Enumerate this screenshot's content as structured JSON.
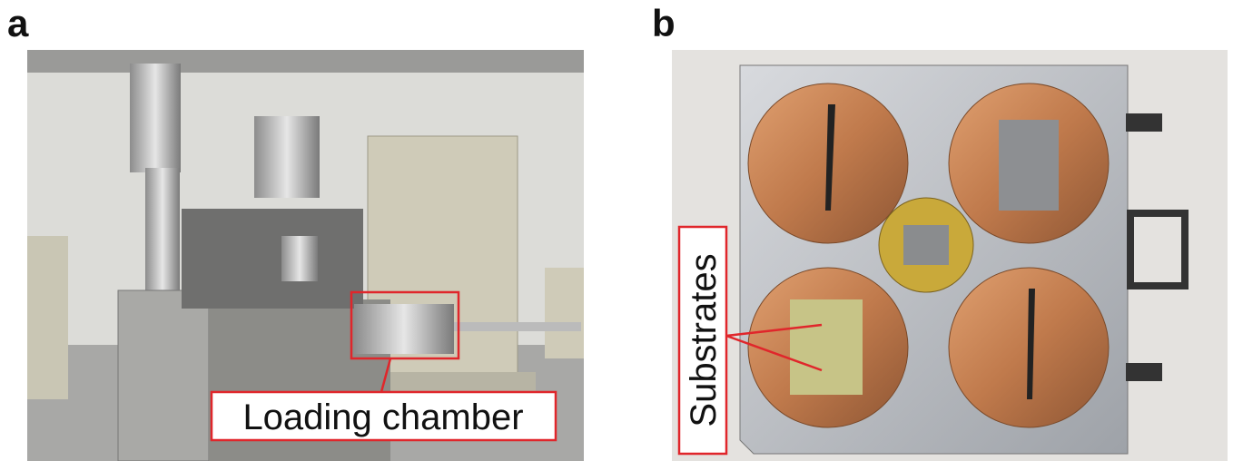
{
  "panels": [
    {
      "label": "a",
      "callout": "Loading chamber"
    },
    {
      "label": "b",
      "callout": "Substrates"
    }
  ]
}
